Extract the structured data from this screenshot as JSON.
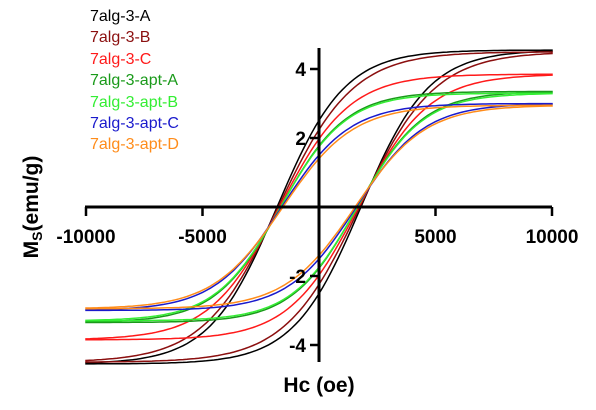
{
  "chart_data": {
    "type": "line",
    "title": "",
    "xlabel": "Hc (oe)",
    "ylabel_main": "M",
    "ylabel_sub": "S",
    "ylabel_rest": "(emu/g)",
    "xlim": [
      -10000,
      10000
    ],
    "ylim": [
      -4.6,
      4.6
    ],
    "x_ticks": [
      -10000,
      -5000,
      0,
      5000,
      10000
    ],
    "x_tick_labels": [
      "-10000",
      "-5000",
      "",
      "5000",
      "10000"
    ],
    "y_ticks": [
      -4,
      -2,
      0,
      2,
      4
    ],
    "y_tick_labels": [
      "-4",
      "-2",
      "",
      "2",
      "4"
    ],
    "grid": false,
    "legend_position": "top-left",
    "series": [
      {
        "name": "7alg-3-A",
        "color": "#000000",
        "ms": 4.55,
        "hc": 1800,
        "w": 2900
      },
      {
        "name": "7alg-3-B",
        "color": "#8b0f0f",
        "ms": 4.5,
        "hc": 1750,
        "w": 3200
      },
      {
        "name": "7alg-3-C",
        "color": "#ff1a1a",
        "ms": 3.85,
        "hc": 1700,
        "w": 3000
      },
      {
        "name": "7alg-3-apt-A",
        "color": "#1a9a1a",
        "ms": 3.35,
        "hc": 1650,
        "w": 2800
      },
      {
        "name": "7alg-3-apt-B",
        "color": "#33ee33",
        "ms": 3.3,
        "hc": 1650,
        "w": 2800
      },
      {
        "name": "7alg-3-apt-C",
        "color": "#1a1acc",
        "ms": 3.0,
        "hc": 1600,
        "w": 2900
      },
      {
        "name": "7alg-3-apt-D",
        "color": "#ff8c1a",
        "ms": 2.95,
        "hc": 1550,
        "w": 3000
      }
    ]
  }
}
